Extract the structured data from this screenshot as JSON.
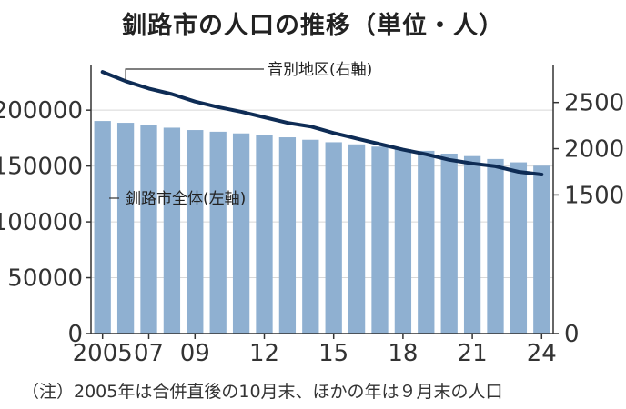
{
  "chart_data": {
    "type": "bar",
    "title": "釧路市の人口の推移（単位・人）",
    "years": [
      2005,
      2006,
      2007,
      2008,
      2009,
      2010,
      2011,
      2012,
      2013,
      2014,
      2015,
      2016,
      2017,
      2018,
      2019,
      2020,
      2021,
      2022,
      2023,
      2024
    ],
    "x_tick_labels": [
      "2005",
      "07",
      "09",
      "12",
      "15",
      "18",
      "21",
      "24"
    ],
    "x_tick_years": [
      2005,
      2007,
      2009,
      2012,
      2015,
      2018,
      2021,
      2024
    ],
    "series": [
      {
        "name": "釧路市全体(左軸)",
        "type": "bar",
        "axis": "left",
        "color": "#8fb0d1",
        "values": [
          190300,
          188700,
          186500,
          184300,
          182200,
          180700,
          179200,
          177600,
          175700,
          173500,
          171300,
          169400,
          167400,
          165100,
          163600,
          161100,
          158900,
          156300,
          153300,
          150300
        ]
      },
      {
        "name": "音別地区(右軸)",
        "type": "line",
        "axis": "right",
        "color": "#0e2c55",
        "values": [
          2830,
          2730,
          2650,
          2590,
          2510,
          2450,
          2400,
          2340,
          2280,
          2240,
          2170,
          2110,
          2050,
          1990,
          1940,
          1880,
          1840,
          1810,
          1750,
          1720
        ]
      }
    ],
    "left_axis": {
      "ylim": [
        0,
        240000
      ],
      "ticks": [
        "0",
        "50000",
        "100000",
        "150000",
        "200000"
      ],
      "tick_values": [
        0,
        50000,
        100000,
        150000,
        200000
      ]
    },
    "right_axis": {
      "ylim": [
        0,
        2900
      ],
      "ticks": [
        "0",
        "1500",
        "2000",
        "2500"
      ],
      "tick_values": [
        0,
        1500,
        2000,
        2500
      ]
    },
    "annotations": {
      "line_label": "音別地区(右軸)",
      "bar_label": "釧路市全体(左軸)"
    }
  },
  "note": "（注）2005年は合併直後の10月末、ほかの年は９月末の人口"
}
